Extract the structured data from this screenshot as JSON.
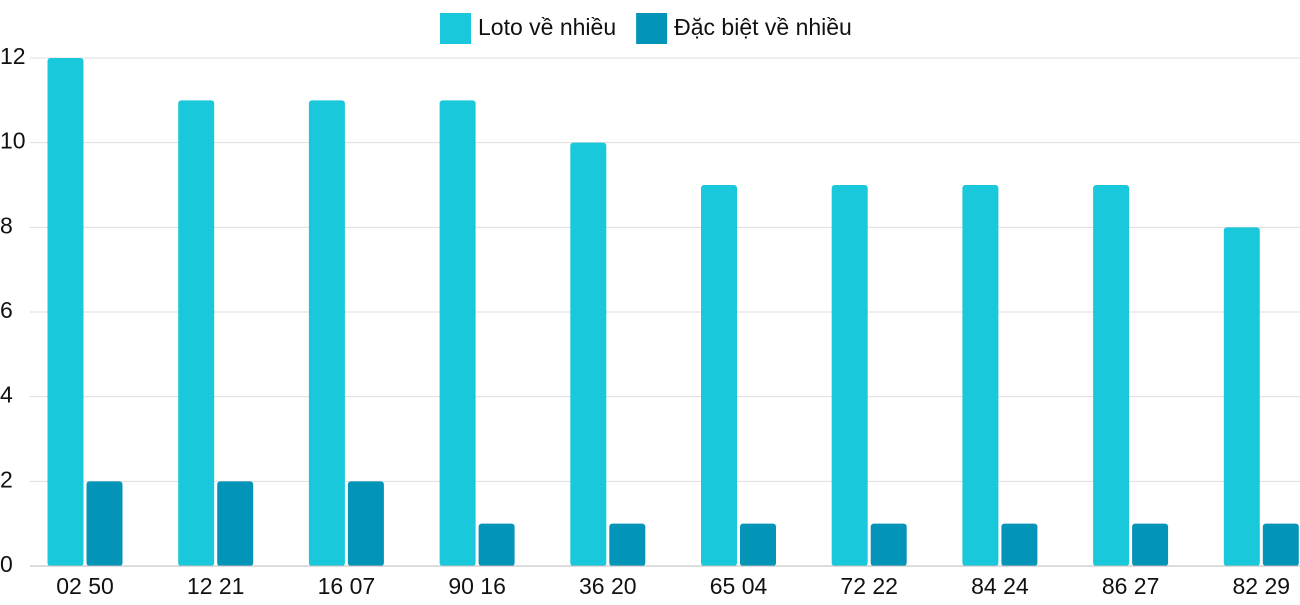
{
  "chart_data": {
    "type": "bar",
    "categories": [
      "02 50",
      "12 21",
      "16 07",
      "90 16",
      "36 20",
      "65 04",
      "72 22",
      "84 24",
      "86 27",
      "82 29"
    ],
    "series": [
      {
        "name": "Loto về nhiều",
        "color": "#1ac8db",
        "values": [
          12,
          11,
          11,
          11,
          10,
          9,
          9,
          9,
          9,
          8
        ]
      },
      {
        "name": "Đặc biệt về nhiều",
        "color": "#0494b7",
        "values": [
          2,
          2,
          2,
          1,
          1,
          1,
          1,
          1,
          1,
          1
        ]
      }
    ],
    "ylim": [
      0,
      12
    ],
    "yticks": [
      0,
      2,
      4,
      6,
      8,
      10,
      12
    ],
    "grid": true,
    "legend": "top"
  }
}
